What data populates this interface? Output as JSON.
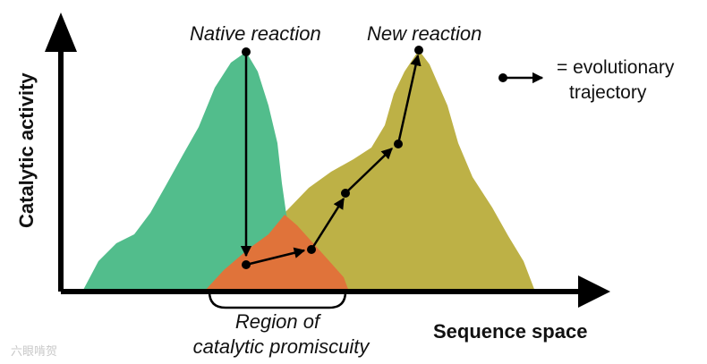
{
  "labels": {
    "native_reaction": "Native reaction",
    "new_reaction": "New reaction",
    "y_axis": "Catalytic activity",
    "x_axis": "Sequence space",
    "region_line1": "Region of",
    "region_line2": "catalytic promiscuity",
    "legend_line1": "= evolutionary",
    "legend_line2": "trajectory",
    "watermark": "六眼啃贺"
  },
  "colors": {
    "native_peak": "#52bd8c",
    "new_peak": "#bdb146",
    "promiscuity_region": "#e0733a",
    "axis": "#000000",
    "trajectory": "#000000"
  }
}
